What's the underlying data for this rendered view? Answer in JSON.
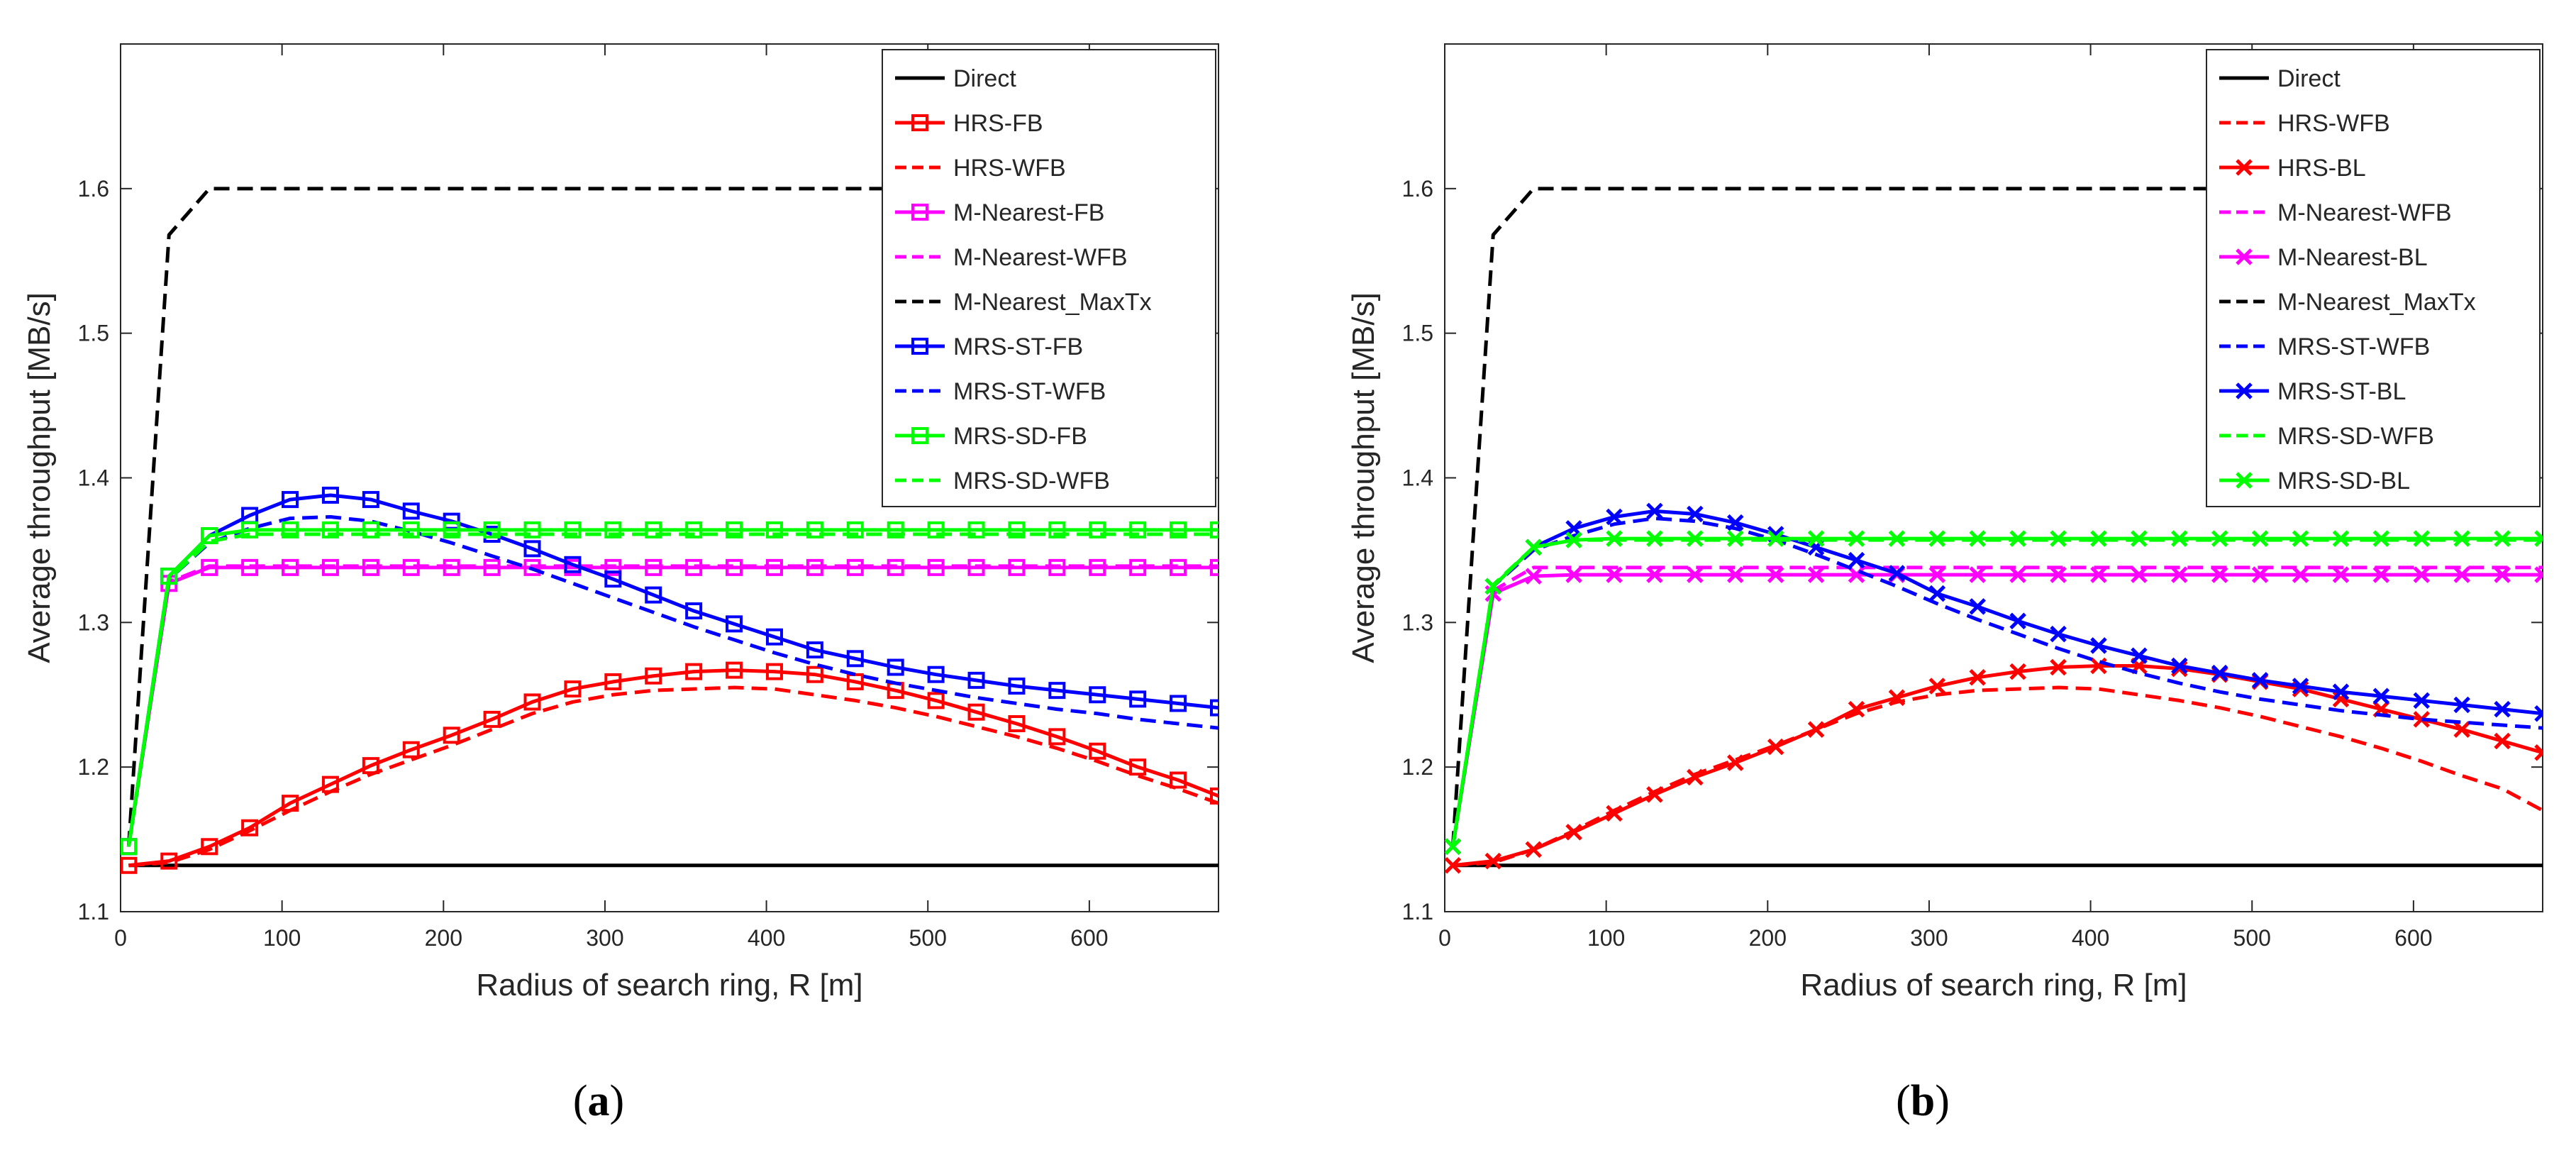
{
  "chart_data": [
    {
      "type": "line",
      "caption_letter": "a",
      "xlabel": "Radius of search ring, R [m]",
      "ylabel": "Average throughput [MB/s]",
      "xlim": [
        0,
        680
      ],
      "ylim": [
        1.1,
        1.7
      ],
      "xticks": [
        0,
        100,
        200,
        300,
        400,
        500,
        600
      ],
      "yticks": [
        1.1,
        1.2,
        1.3,
        1.4,
        1.5,
        1.6
      ],
      "grid": false,
      "legend_position": "top-right",
      "series": [
        {
          "name": "Direct",
          "color": "#000000",
          "dash": "solid",
          "marker": "none",
          "x": [
            5,
            680
          ],
          "y": [
            1.132,
            1.132
          ]
        },
        {
          "name": "HRS-FB",
          "color": "#ff0000",
          "dash": "solid",
          "marker": "square",
          "x": [
            5,
            30,
            55,
            80,
            105,
            130,
            155,
            180,
            205,
            230,
            255,
            280,
            305,
            330,
            355,
            380,
            405,
            430,
            455,
            480,
            505,
            530,
            555,
            580,
            605,
            630,
            655,
            680
          ],
          "y": [
            1.132,
            1.135,
            1.145,
            1.158,
            1.175,
            1.188,
            1.201,
            1.212,
            1.222,
            1.233,
            1.245,
            1.254,
            1.259,
            1.263,
            1.266,
            1.267,
            1.266,
            1.264,
            1.259,
            1.253,
            1.246,
            1.238,
            1.23,
            1.221,
            1.211,
            1.2,
            1.191,
            1.18
          ]
        },
        {
          "name": "HRS-WFB",
          "color": "#ff0000",
          "dash": "dashed",
          "marker": "none",
          "x": [
            5,
            30,
            55,
            80,
            105,
            130,
            155,
            180,
            205,
            230,
            255,
            280,
            305,
            330,
            355,
            380,
            405,
            430,
            455,
            480,
            505,
            530,
            555,
            580,
            605,
            630,
            655,
            680
          ],
          "y": [
            1.132,
            1.134,
            1.143,
            1.156,
            1.17,
            1.183,
            1.195,
            1.205,
            1.215,
            1.226,
            1.237,
            1.245,
            1.25,
            1.253,
            1.254,
            1.255,
            1.254,
            1.25,
            1.246,
            1.241,
            1.235,
            1.228,
            1.221,
            1.213,
            1.204,
            1.194,
            1.185,
            1.175
          ]
        },
        {
          "name": "M-Nearest-FB",
          "color": "#ff00ff",
          "dash": "solid",
          "marker": "square",
          "x": [
            5,
            30,
            55,
            80,
            105,
            130,
            155,
            180,
            205,
            230,
            255,
            280,
            305,
            330,
            355,
            380,
            405,
            430,
            455,
            480,
            505,
            530,
            555,
            580,
            605,
            630,
            655,
            680
          ],
          "y": [
            1.145,
            1.327,
            1.338,
            1.338,
            1.338,
            1.338,
            1.338,
            1.338,
            1.338,
            1.338,
            1.338,
            1.338,
            1.338,
            1.338,
            1.338,
            1.338,
            1.338,
            1.338,
            1.338,
            1.338,
            1.338,
            1.338,
            1.338,
            1.338,
            1.338,
            1.338,
            1.338,
            1.338
          ]
        },
        {
          "name": "M-Nearest-WFB",
          "color": "#ff00ff",
          "dash": "dashed",
          "marker": "none",
          "x": [
            5,
            30,
            55,
            680
          ],
          "y": [
            1.145,
            1.328,
            1.339,
            1.339
          ]
        },
        {
          "name": "M-Nearest_MaxTx",
          "color": "#000000",
          "dash": "dashed",
          "marker": "none",
          "x": [
            5,
            30,
            55,
            680
          ],
          "y": [
            1.145,
            1.568,
            1.6,
            1.6
          ]
        },
        {
          "name": "MRS-ST-FB",
          "color": "#0000ff",
          "dash": "solid",
          "marker": "square",
          "x": [
            5,
            30,
            55,
            80,
            105,
            130,
            155,
            180,
            205,
            230,
            255,
            280,
            305,
            330,
            355,
            380,
            405,
            430,
            455,
            480,
            505,
            530,
            555,
            580,
            605,
            630,
            655,
            680
          ],
          "y": [
            1.145,
            1.332,
            1.36,
            1.374,
            1.385,
            1.388,
            1.385,
            1.377,
            1.37,
            1.361,
            1.351,
            1.34,
            1.33,
            1.319,
            1.308,
            1.299,
            1.29,
            1.281,
            1.275,
            1.269,
            1.264,
            1.26,
            1.256,
            1.253,
            1.25,
            1.247,
            1.244,
            1.241
          ]
        },
        {
          "name": "MRS-ST-WFB",
          "color": "#0000ff",
          "dash": "dashed",
          "marker": "none",
          "x": [
            5,
            30,
            55,
            80,
            105,
            130,
            155,
            180,
            205,
            230,
            255,
            280,
            305,
            330,
            355,
            380,
            405,
            430,
            455,
            480,
            505,
            530,
            555,
            580,
            605,
            630,
            655,
            680
          ],
          "y": [
            1.145,
            1.33,
            1.355,
            1.365,
            1.372,
            1.373,
            1.37,
            1.363,
            1.355,
            1.346,
            1.337,
            1.327,
            1.317,
            1.307,
            1.297,
            1.288,
            1.279,
            1.271,
            1.264,
            1.258,
            1.253,
            1.248,
            1.244,
            1.24,
            1.237,
            1.233,
            1.23,
            1.227
          ]
        },
        {
          "name": "MRS-SD-FB",
          "color": "#00ff00",
          "dash": "solid",
          "marker": "square",
          "x": [
            5,
            30,
            55,
            80,
            105,
            130,
            155,
            180,
            205,
            230,
            255,
            280,
            305,
            330,
            355,
            380,
            405,
            430,
            455,
            480,
            505,
            530,
            555,
            580,
            605,
            630,
            655,
            680
          ],
          "y": [
            1.145,
            1.332,
            1.36,
            1.364,
            1.364,
            1.364,
            1.364,
            1.364,
            1.364,
            1.364,
            1.364,
            1.364,
            1.364,
            1.364,
            1.364,
            1.364,
            1.364,
            1.364,
            1.364,
            1.364,
            1.364,
            1.364,
            1.364,
            1.364,
            1.364,
            1.364,
            1.364,
            1.364
          ]
        },
        {
          "name": "MRS-SD-WFB",
          "color": "#00ff00",
          "dash": "dashed",
          "marker": "none",
          "x": [
            5,
            30,
            55,
            80,
            680
          ],
          "y": [
            1.145,
            1.33,
            1.356,
            1.361,
            1.361
          ]
        }
      ]
    },
    {
      "type": "line",
      "caption_letter": "b",
      "xlabel": "Radius of search ring, R [m]",
      "ylabel": "Average throughput [MB/s]",
      "xlim": [
        0,
        680
      ],
      "ylim": [
        1.1,
        1.7
      ],
      "xticks": [
        0,
        100,
        200,
        300,
        400,
        500,
        600
      ],
      "yticks": [
        1.1,
        1.2,
        1.3,
        1.4,
        1.5,
        1.6
      ],
      "grid": false,
      "legend_position": "top-right",
      "series": [
        {
          "name": "Direct",
          "color": "#000000",
          "dash": "solid",
          "marker": "none",
          "x": [
            5,
            680
          ],
          "y": [
            1.132,
            1.132
          ]
        },
        {
          "name": "HRS-WFB",
          "color": "#ff0000",
          "dash": "dashed",
          "marker": "none",
          "x": [
            5,
            30,
            55,
            80,
            105,
            130,
            155,
            180,
            205,
            230,
            255,
            280,
            305,
            330,
            355,
            380,
            405,
            430,
            455,
            480,
            505,
            530,
            555,
            580,
            605,
            630,
            655,
            680
          ],
          "y": [
            1.132,
            1.134,
            1.143,
            1.156,
            1.17,
            1.183,
            1.195,
            1.205,
            1.215,
            1.226,
            1.237,
            1.245,
            1.25,
            1.253,
            1.254,
            1.255,
            1.254,
            1.25,
            1.246,
            1.241,
            1.235,
            1.228,
            1.221,
            1.213,
            1.204,
            1.194,
            1.185,
            1.17
          ]
        },
        {
          "name": "HRS-BL",
          "color": "#ff0000",
          "dash": "solid",
          "marker": "x",
          "x": [
            5,
            30,
            55,
            80,
            105,
            130,
            155,
            180,
            205,
            230,
            255,
            280,
            305,
            330,
            355,
            380,
            405,
            430,
            455,
            480,
            505,
            530,
            555,
            580,
            605,
            630,
            655,
            680
          ],
          "y": [
            1.132,
            1.135,
            1.143,
            1.155,
            1.168,
            1.181,
            1.193,
            1.203,
            1.214,
            1.226,
            1.24,
            1.248,
            1.256,
            1.262,
            1.266,
            1.269,
            1.27,
            1.27,
            1.268,
            1.264,
            1.259,
            1.254,
            1.247,
            1.24,
            1.233,
            1.226,
            1.218,
            1.21
          ]
        },
        {
          "name": "M-Nearest-WFB",
          "color": "#ff00ff",
          "dash": "dashed",
          "marker": "none",
          "x": [
            5,
            30,
            55,
            680
          ],
          "y": [
            1.145,
            1.322,
            1.338,
            1.338
          ]
        },
        {
          "name": "M-Nearest-BL",
          "color": "#ff00ff",
          "dash": "solid",
          "marker": "x",
          "x": [
            5,
            30,
            55,
            80,
            105,
            130,
            155,
            180,
            205,
            230,
            255,
            280,
            305,
            330,
            355,
            380,
            405,
            430,
            455,
            480,
            505,
            530,
            555,
            580,
            605,
            630,
            655,
            680
          ],
          "y": [
            1.145,
            1.32,
            1.332,
            1.333,
            1.333,
            1.333,
            1.333,
            1.333,
            1.333,
            1.333,
            1.333,
            1.333,
            1.333,
            1.333,
            1.333,
            1.333,
            1.333,
            1.333,
            1.333,
            1.333,
            1.333,
            1.333,
            1.333,
            1.333,
            1.333,
            1.333,
            1.333,
            1.333
          ]
        },
        {
          "name": "M-Nearest_MaxTx",
          "color": "#000000",
          "dash": "dashed",
          "marker": "none",
          "x": [
            5,
            30,
            55,
            680
          ],
          "y": [
            1.145,
            1.568,
            1.6,
            1.6
          ]
        },
        {
          "name": "MRS-ST-WFB",
          "color": "#0000ff",
          "dash": "dashed",
          "marker": "none",
          "x": [
            5,
            30,
            55,
            80,
            105,
            130,
            155,
            180,
            205,
            230,
            255,
            280,
            305,
            330,
            355,
            380,
            405,
            430,
            455,
            480,
            505,
            530,
            555,
            580,
            605,
            630,
            655,
            680
          ],
          "y": [
            1.145,
            1.325,
            1.35,
            1.36,
            1.368,
            1.372,
            1.37,
            1.365,
            1.357,
            1.347,
            1.336,
            1.325,
            1.313,
            1.302,
            1.292,
            1.282,
            1.273,
            1.265,
            1.258,
            1.252,
            1.247,
            1.243,
            1.239,
            1.236,
            1.233,
            1.231,
            1.229,
            1.227
          ]
        },
        {
          "name": "MRS-ST-BL",
          "color": "#0000ff",
          "dash": "solid",
          "marker": "x",
          "x": [
            5,
            30,
            55,
            80,
            105,
            130,
            155,
            180,
            205,
            230,
            255,
            280,
            305,
            330,
            355,
            380,
            405,
            430,
            455,
            480,
            505,
            530,
            555,
            580,
            605,
            630,
            655,
            680
          ],
          "y": [
            1.145,
            1.325,
            1.352,
            1.365,
            1.373,
            1.377,
            1.375,
            1.369,
            1.361,
            1.352,
            1.343,
            1.334,
            1.32,
            1.311,
            1.301,
            1.292,
            1.284,
            1.277,
            1.27,
            1.265,
            1.26,
            1.256,
            1.252,
            1.249,
            1.246,
            1.243,
            1.24,
            1.237
          ]
        },
        {
          "name": "MRS-SD-WFB",
          "color": "#00ff00",
          "dash": "dashed",
          "marker": "none",
          "x": [
            5,
            30,
            55,
            80,
            680
          ],
          "y": [
            1.145,
            1.326,
            1.352,
            1.357,
            1.357
          ]
        },
        {
          "name": "MRS-SD-BL",
          "color": "#00ff00",
          "dash": "solid",
          "marker": "x",
          "x": [
            5,
            30,
            55,
            80,
            105,
            130,
            155,
            180,
            205,
            230,
            255,
            280,
            305,
            330,
            355,
            380,
            405,
            430,
            455,
            480,
            505,
            530,
            555,
            580,
            605,
            630,
            655,
            680
          ],
          "y": [
            1.145,
            1.325,
            1.352,
            1.357,
            1.358,
            1.358,
            1.358,
            1.358,
            1.358,
            1.358,
            1.358,
            1.358,
            1.358,
            1.358,
            1.358,
            1.358,
            1.358,
            1.358,
            1.358,
            1.358,
            1.358,
            1.358,
            1.358,
            1.358,
            1.358,
            1.358,
            1.358,
            1.358
          ]
        }
      ]
    }
  ]
}
